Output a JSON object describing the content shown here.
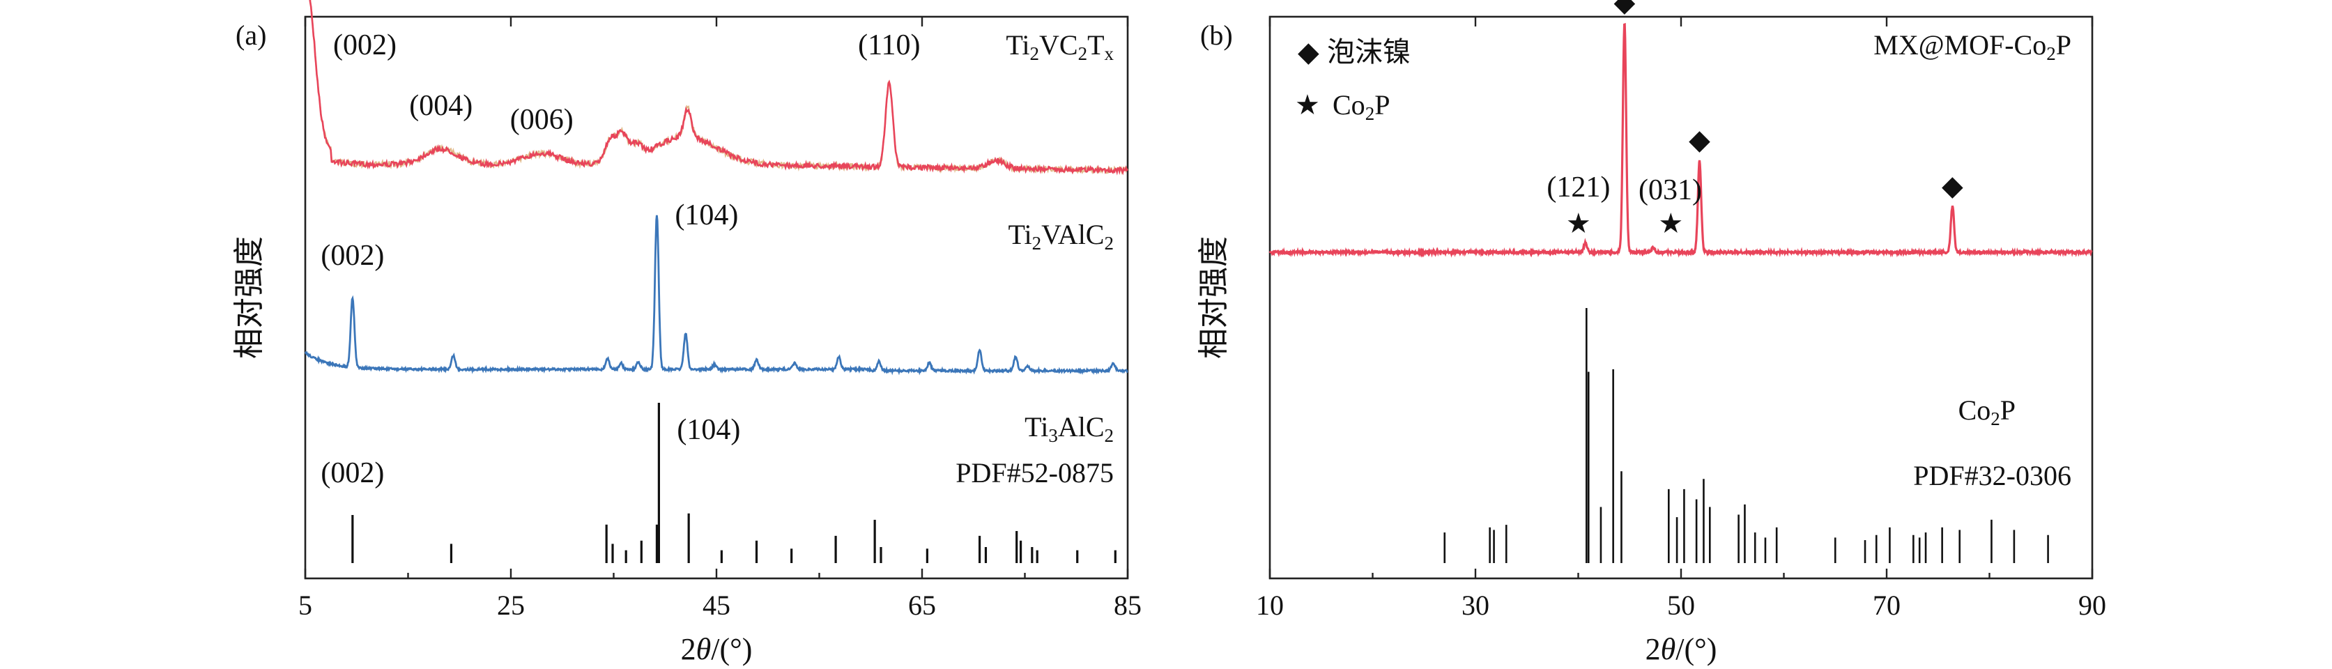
{
  "figure": {
    "panel_a_label": "(a)",
    "panel_b_label": "(b)"
  },
  "chart_data": [
    {
      "type": "line",
      "panel": "(a)",
      "xlabel": "2θ/(°)",
      "ylabel": "相对强度",
      "xlim": [
        5,
        85
      ],
      "xticks": [
        5,
        25,
        45,
        65,
        85
      ],
      "series": [
        {
          "name": "Ti2VC2Tx",
          "label_html": "Ti<tspan class='sub' dy='8'>2</tspan><tspan dy='-8'>VC</tspan><tspan class='sub' dy='8'>2</tspan><tspan dy='-8'>T</tspan><tspan class='sub' dy='8'>x</tspan>",
          "color": "#e8445a",
          "peaks": [
            {
              "two_theta": 7.0,
              "hkl": "(002)"
            },
            {
              "two_theta": 18.2,
              "hkl": "(004)"
            },
            {
              "two_theta": 28.0,
              "hkl": "(006)"
            },
            {
              "two_theta": 61.8,
              "hkl": "(110)"
            }
          ]
        },
        {
          "name": "Ti2VAlC2",
          "label_html": "Ti<tspan class='sub' dy='8'>2</tspan><tspan dy='-8'>VAlC</tspan><tspan class='sub' dy='8'>2</tspan>",
          "color": "#3b76b9",
          "peaks": [
            {
              "two_theta": 9.6,
              "hkl": "(002)",
              "rel": 0.45
            },
            {
              "two_theta": 19.4,
              "rel": 0.09
            },
            {
              "two_theta": 34.4,
              "rel": 0.07
            },
            {
              "two_theta": 35.7,
              "rel": 0.04
            },
            {
              "two_theta": 37.4,
              "rel": 0.05
            },
            {
              "two_theta": 39.2,
              "hkl": "(104)",
              "rel": 1.0
            },
            {
              "two_theta": 42.0,
              "rel": 0.23
            },
            {
              "two_theta": 44.8,
              "rel": 0.03
            },
            {
              "two_theta": 48.9,
              "rel": 0.06
            },
            {
              "two_theta": 52.6,
              "rel": 0.04
            },
            {
              "two_theta": 56.9,
              "rel": 0.08
            },
            {
              "two_theta": 60.8,
              "rel": 0.06
            },
            {
              "two_theta": 65.7,
              "rel": 0.05
            },
            {
              "two_theta": 70.6,
              "rel": 0.13
            },
            {
              "two_theta": 74.1,
              "rel": 0.09
            },
            {
              "two_theta": 75.3,
              "rel": 0.03
            },
            {
              "two_theta": 83.6,
              "rel": 0.05
            }
          ]
        },
        {
          "name": "Ti3AlC2 PDF#52-0875",
          "label_html": "Ti<tspan class='sub' dy='8'>3</tspan><tspan dy='-8'>AlC</tspan><tspan class='sub' dy='8'>2</tspan>",
          "label2": "PDF#52-0875",
          "color": "#111111",
          "sticks": [
            {
              "two_theta": 9.6,
              "rel": 0.3,
              "hkl": "(002)"
            },
            {
              "two_theta": 19.2,
              "rel": 0.12
            },
            {
              "two_theta": 34.3,
              "rel": 0.24
            },
            {
              "two_theta": 34.9,
              "rel": 0.12
            },
            {
              "two_theta": 36.2,
              "rel": 0.08
            },
            {
              "two_theta": 37.7,
              "rel": 0.14
            },
            {
              "two_theta": 39.2,
              "rel": 0.24
            },
            {
              "two_theta": 39.4,
              "rel": 1.0,
              "hkl": "(104)"
            },
            {
              "two_theta": 42.3,
              "rel": 0.31
            },
            {
              "two_theta": 45.5,
              "rel": 0.08
            },
            {
              "two_theta": 48.9,
              "rel": 0.14
            },
            {
              "two_theta": 52.3,
              "rel": 0.09
            },
            {
              "two_theta": 56.6,
              "rel": 0.17
            },
            {
              "two_theta": 60.4,
              "rel": 0.27
            },
            {
              "two_theta": 61.0,
              "rel": 0.1
            },
            {
              "two_theta": 65.5,
              "rel": 0.09
            },
            {
              "two_theta": 70.6,
              "rel": 0.17
            },
            {
              "two_theta": 71.2,
              "rel": 0.1
            },
            {
              "two_theta": 74.2,
              "rel": 0.2
            },
            {
              "two_theta": 74.6,
              "rel": 0.14
            },
            {
              "two_theta": 75.7,
              "rel": 0.1
            },
            {
              "two_theta": 76.2,
              "rel": 0.08
            },
            {
              "two_theta": 80.1,
              "rel": 0.08
            },
            {
              "two_theta": 83.8,
              "rel": 0.08
            }
          ]
        }
      ]
    },
    {
      "type": "line",
      "panel": "(b)",
      "xlabel": "2θ/(°)",
      "ylabel": "相对强度",
      "xlim": [
        10,
        90
      ],
      "xticks": [
        10,
        30,
        50,
        70,
        90
      ],
      "legend": [
        {
          "marker": "◆",
          "label": "泡沫镍"
        },
        {
          "marker": "★",
          "label_html": "Co<tspan class='sub' dy='8'>2</tspan><tspan dy='-8'>P</tspan>"
        }
      ],
      "series": [
        {
          "name": "MX@MOF-Co2P",
          "label_html": "MX@MOF-Co<tspan class='sub' dy='8'>2</tspan><tspan dy='-8'>P</tspan>",
          "color": "#e8445a",
          "peaks": [
            {
              "two_theta": 40.7,
              "rel": 0.04,
              "marker": "★",
              "hkl": "(121)"
            },
            {
              "two_theta": 44.5,
              "rel": 1.0,
              "marker": "◆"
            },
            {
              "two_theta": 47.3,
              "rel": 0.02
            },
            {
              "two_theta": 51.8,
              "rel": 0.4,
              "marker": "◆",
              "hkl": "(031)"
            },
            {
              "two_theta": 76.4,
              "rel": 0.2,
              "marker": "◆"
            }
          ],
          "extra_markers": [
            {
              "two_theta": 49.0,
              "marker": "★"
            }
          ]
        },
        {
          "name": "Co2P PDF#32-0306",
          "label_html": "Co<tspan class='sub' dy='8'>2</tspan><tspan dy='-8'>P</tspan>",
          "label2": "PDF#32-0306",
          "color": "#111111",
          "sticks": [
            {
              "two_theta": 27.0,
              "rel": 0.12
            },
            {
              "two_theta": 31.4,
              "rel": 0.14
            },
            {
              "two_theta": 31.8,
              "rel": 0.13
            },
            {
              "two_theta": 33.0,
              "rel": 0.15
            },
            {
              "two_theta": 40.8,
              "rel": 1.0
            },
            {
              "two_theta": 41.0,
              "rel": 0.75
            },
            {
              "two_theta": 42.2,
              "rel": 0.22
            },
            {
              "two_theta": 43.4,
              "rel": 0.76
            },
            {
              "two_theta": 44.2,
              "rel": 0.36
            },
            {
              "two_theta": 48.8,
              "rel": 0.29
            },
            {
              "two_theta": 49.6,
              "rel": 0.18
            },
            {
              "two_theta": 50.3,
              "rel": 0.29
            },
            {
              "two_theta": 51.5,
              "rel": 0.25
            },
            {
              "two_theta": 52.2,
              "rel": 0.33
            },
            {
              "two_theta": 52.8,
              "rel": 0.22
            },
            {
              "two_theta": 55.6,
              "rel": 0.19
            },
            {
              "two_theta": 56.2,
              "rel": 0.23
            },
            {
              "two_theta": 57.2,
              "rel": 0.12
            },
            {
              "two_theta": 58.2,
              "rel": 0.1
            },
            {
              "two_theta": 59.3,
              "rel": 0.14
            },
            {
              "two_theta": 65.0,
              "rel": 0.1
            },
            {
              "two_theta": 67.9,
              "rel": 0.09
            },
            {
              "two_theta": 69.0,
              "rel": 0.11
            },
            {
              "two_theta": 70.3,
              "rel": 0.14
            },
            {
              "two_theta": 72.6,
              "rel": 0.11
            },
            {
              "two_theta": 73.2,
              "rel": 0.1
            },
            {
              "two_theta": 73.8,
              "rel": 0.12
            },
            {
              "two_theta": 75.4,
              "rel": 0.14
            },
            {
              "two_theta": 77.1,
              "rel": 0.13
            },
            {
              "two_theta": 80.2,
              "rel": 0.17
            },
            {
              "two_theta": 82.4,
              "rel": 0.13
            },
            {
              "two_theta": 85.7,
              "rel": 0.11
            }
          ]
        }
      ]
    }
  ]
}
